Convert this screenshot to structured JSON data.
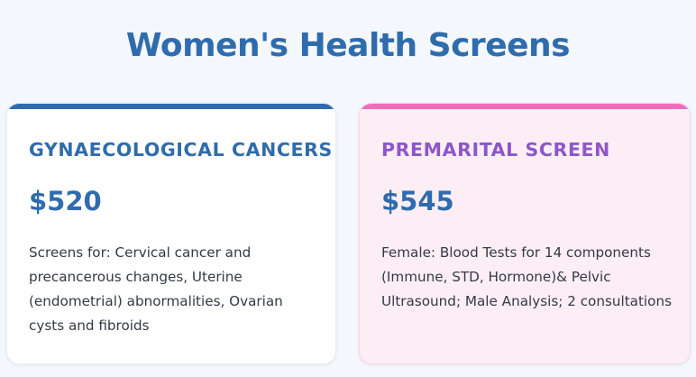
{
  "header": {
    "title": "Women's Health Screens"
  },
  "cards": [
    {
      "title": "GYNAECOLOGICAL CANCERS",
      "price": "$520",
      "description": "Screens for: Cervical cancer and precancerous changes, Uterine (endometrial) abnormalities, Ovarian cysts and fibroids",
      "accent_color": "#2f6cad"
    },
    {
      "title": "PREMARITAL SCREEN",
      "price": "$545",
      "description": "Female: Blood Tests for 14 components (Immune, STD, Hormone)& Pelvic Ultrasound; Male Analysis; 2 consultations",
      "accent_color": "#f06dbb"
    }
  ]
}
